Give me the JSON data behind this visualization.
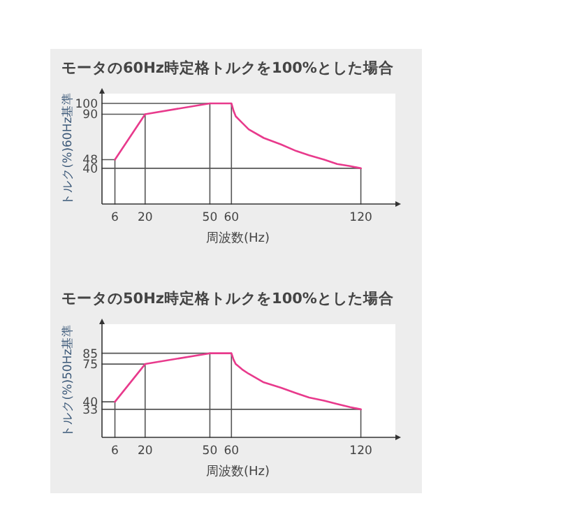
{
  "chart_data": [
    {
      "type": "line",
      "title": "モータの60Hz時定格トルクを100%とした場合",
      "xlabel": "周波数(Hz)",
      "ylabel": "トルク(%)60Hz基準",
      "xlim": [
        0,
        136
      ],
      "ylim": [
        7,
        109
      ],
      "xticks": [
        6,
        20,
        50,
        60,
        120
      ],
      "yticks": [
        40,
        48,
        90,
        100
      ],
      "series": [
        {
          "color": "#555555",
          "x": [
            0,
            6
          ],
          "values": [
            48,
            48
          ]
        },
        {
          "color": "#555555",
          "x": [
            0,
            20
          ],
          "values": [
            90,
            90
          ]
        },
        {
          "color": "#555555",
          "x": [
            0,
            50
          ],
          "values": [
            100,
            100
          ]
        },
        {
          "color": "#555555",
          "x": [
            0,
            120
          ],
          "values": [
            40,
            40
          ]
        },
        {
          "color": "#555555",
          "x": [
            6,
            6
          ],
          "values": [
            7,
            48
          ]
        },
        {
          "color": "#555555",
          "x": [
            20,
            20
          ],
          "values": [
            7,
            90
          ]
        },
        {
          "color": "#555555",
          "x": [
            50,
            50
          ],
          "values": [
            7,
            100
          ]
        },
        {
          "color": "#555555",
          "x": [
            60,
            60
          ],
          "values": [
            7,
            100
          ]
        },
        {
          "color": "#555555",
          "x": [
            120,
            120
          ],
          "values": [
            7,
            40
          ]
        },
        {
          "color": "#e83a8c",
          "x": [
            6,
            20,
            50,
            60,
            61,
            62,
            65,
            68,
            75,
            83,
            90,
            96,
            103,
            109,
            115,
            120
          ],
          "values": [
            48,
            90,
            100,
            100,
            93,
            88,
            82,
            76,
            68,
            62,
            56,
            52,
            48,
            44,
            42,
            40
          ]
        }
      ]
    },
    {
      "type": "line",
      "title": "モータの50Hz時定格トルクを100%とした場合",
      "xlabel": "周波数(Hz)",
      "ylabel": "トルク(%)50Hz基準",
      "xlim": [
        0,
        136
      ],
      "ylim": [
        7,
        112
      ],
      "xticks": [
        6,
        20,
        50,
        60,
        120
      ],
      "yticks": [
        33,
        40,
        75,
        85
      ],
      "series": [
        {
          "color": "#555555",
          "x": [
            0,
            6
          ],
          "values": [
            40,
            40
          ]
        },
        {
          "color": "#555555",
          "x": [
            0,
            20
          ],
          "values": [
            75,
            75
          ]
        },
        {
          "color": "#555555",
          "x": [
            0,
            50
          ],
          "values": [
            85,
            85
          ]
        },
        {
          "color": "#555555",
          "x": [
            0,
            120
          ],
          "values": [
            33,
            33
          ]
        },
        {
          "color": "#555555",
          "x": [
            6,
            6
          ],
          "values": [
            7,
            40
          ]
        },
        {
          "color": "#555555",
          "x": [
            20,
            20
          ],
          "values": [
            7,
            75
          ]
        },
        {
          "color": "#555555",
          "x": [
            50,
            50
          ],
          "values": [
            7,
            85
          ]
        },
        {
          "color": "#555555",
          "x": [
            60,
            60
          ],
          "values": [
            7,
            85
          ]
        },
        {
          "color": "#555555",
          "x": [
            120,
            120
          ],
          "values": [
            7,
            33
          ]
        },
        {
          "color": "#e83a8c",
          "x": [
            6,
            20,
            50,
            60,
            61,
            62,
            65,
            68,
            75,
            83,
            90,
            96,
            103,
            109,
            115,
            120
          ],
          "values": [
            40,
            75,
            85,
            85,
            79,
            75,
            70,
            66,
            58,
            53,
            48,
            44,
            41,
            38,
            35,
            33
          ]
        }
      ]
    }
  ]
}
